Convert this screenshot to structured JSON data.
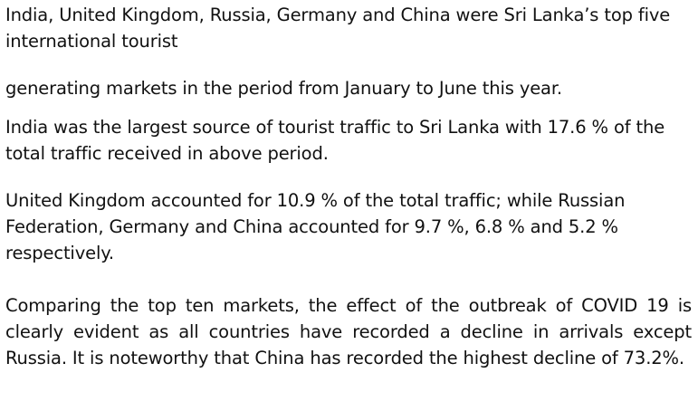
{
  "document": {
    "paragraphs": [
      "India, United Kingdom, Russia, Germany and China were Sri Lanka’s top five international tourist",
      "generating markets in the period from January to June this year.",
      "India was the largest source of tourist traffic to Sri Lanka with 17.6 % of the total traffic received in above period.",
      "United Kingdom accounted for 10.9 % of the total traffic; while Russian Federation, Germany and China accounted for 9.7 %, 6.8 % and 5.2 % respectively.",
      "Comparing the top ten markets, the effect of the outbreak of COVID 19 is clearly evident as all countries have recorded a decline in arrivals except Russia. It is noteworthy that China has recorded the highest decline of 73.2%."
    ]
  }
}
